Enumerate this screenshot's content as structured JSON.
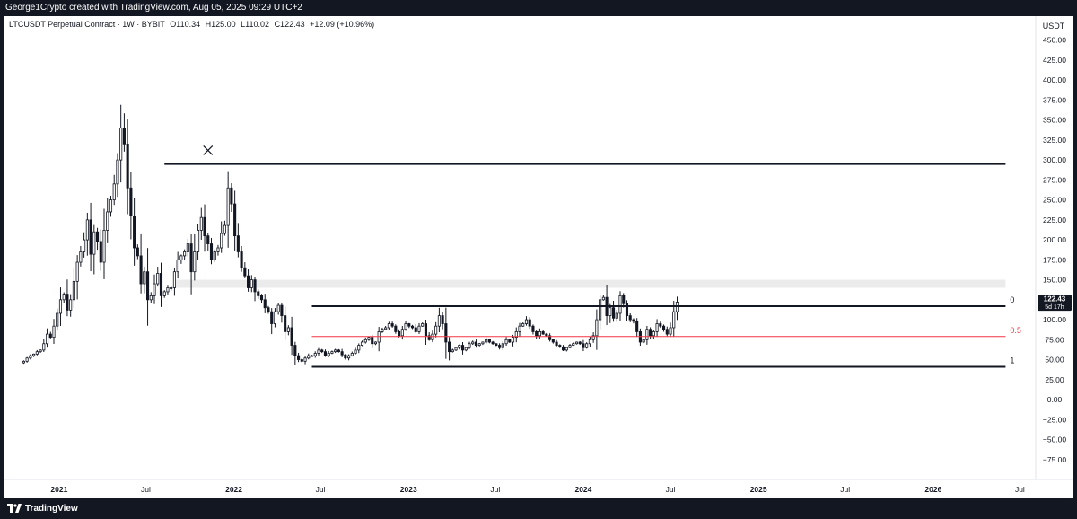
{
  "header": {
    "attribution": "George1Crypto created with TradingView.com, Aug 05, 2025 09:29 UTC+2"
  },
  "legend": {
    "symbol": "LTCUSDT Perpetual Contract · 1W · BYBIT",
    "open_label": "O110.34",
    "high_label": "H125.00",
    "low_label": "L110.02",
    "close_label": "C122.43",
    "change_label": "+12.09 (+10.96%)"
  },
  "footer": {
    "brand": "TradingView"
  },
  "colors": {
    "up": "#089981",
    "down": "#f23645",
    "candle": "#131722",
    "fib_mid": "#f23645",
    "frame_bg": "#131722"
  },
  "chart_data": {
    "type": "candlestick",
    "currency": "USDT",
    "y_ticks": [
      -75,
      -50,
      -25,
      0,
      25,
      50,
      75,
      100,
      125,
      150,
      175,
      200,
      225,
      250,
      275,
      300,
      325,
      350,
      375,
      400,
      425,
      450
    ],
    "y_tick_labels": [
      "−75.00",
      "−50.00",
      "−25.00",
      "0.00",
      "25.00",
      "50.00",
      "75.00",
      "100.00",
      "125.00",
      "150.00",
      "175.00",
      "200.00",
      "225.00",
      "250.00",
      "275.00",
      "300.00",
      "325.00",
      "350.00",
      "375.00",
      "400.00",
      "425.00",
      "450.00"
    ],
    "ylim": [
      -100,
      480
    ],
    "x_range": [
      "2020-09-07",
      "2026-08-03"
    ],
    "x_ticks": [
      {
        "date": "2021-01-01",
        "label": "2021"
      },
      {
        "date": "2021-07-01",
        "label": "Jul"
      },
      {
        "date": "2022-01-01",
        "label": "2022"
      },
      {
        "date": "2022-07-01",
        "label": "Jul"
      },
      {
        "date": "2023-01-01",
        "label": "2023"
      },
      {
        "date": "2023-07-01",
        "label": "Jul"
      },
      {
        "date": "2024-01-01",
        "label": "2024"
      },
      {
        "date": "2024-07-01",
        "label": "Jul"
      },
      {
        "date": "2025-01-01",
        "label": "2025"
      },
      {
        "date": "2025-07-01",
        "label": "Jul"
      },
      {
        "date": "2026-01-01",
        "label": "2026"
      },
      {
        "date": "2026-07-01",
        "label": "Jul"
      }
    ],
    "first_week": "2020-10-19",
    "series_weekly_close": [
      48,
      52,
      55,
      57,
      60,
      62,
      70,
      82,
      78,
      92,
      108,
      125,
      132,
      112,
      125,
      148,
      172,
      185,
      200,
      225,
      182,
      210,
      198,
      172,
      212,
      235,
      250,
      270,
      300,
      340,
      320,
      265,
      230,
      190,
      180,
      145,
      160,
      125,
      130,
      145,
      158,
      130,
      135,
      140,
      140,
      160,
      175,
      180,
      185,
      195,
      160,
      185,
      212,
      228,
      205,
      195,
      175,
      185,
      190,
      208,
      218,
      265,
      245,
      205,
      185,
      165,
      155,
      140,
      150,
      135,
      130,
      125,
      115,
      110,
      95,
      110,
      118,
      105,
      85,
      90,
      68,
      55,
      50,
      48,
      52,
      55,
      55,
      58,
      62,
      60,
      55,
      58,
      60,
      62,
      60,
      56,
      52,
      55,
      58,
      62,
      68,
      72,
      75,
      78,
      70,
      72,
      85,
      88,
      90,
      95,
      92,
      85,
      80,
      88,
      95,
      92,
      90,
      85,
      92,
      95,
      80,
      75,
      82,
      92,
      105,
      95,
      72,
      60,
      62,
      65,
      68,
      62,
      65,
      70,
      72,
      68,
      70,
      72,
      75,
      72,
      70,
      68,
      65,
      70,
      75,
      72,
      78,
      85,
      92,
      95,
      100,
      92,
      85,
      80,
      85,
      82,
      80,
      75,
      72,
      68,
      66,
      62,
      65,
      68,
      70,
      72,
      70,
      65,
      70,
      75,
      80,
      100,
      125,
      128,
      105,
      115,
      102,
      108,
      130,
      120,
      105,
      100,
      98,
      85,
      72,
      75,
      88,
      80,
      85,
      95,
      92,
      88,
      82,
      90,
      110,
      122
    ],
    "markers": [
      {
        "type": "cross",
        "date": "2021-11-08",
        "value": 312
      }
    ],
    "horizontal_levels": [
      {
        "value": 295,
        "from": "2021-08-09",
        "to": "2026-06-01"
      },
      {
        "value": 117,
        "from": "2022-06-13",
        "to": "2026-06-01",
        "fib_label": "0"
      },
      {
        "value": 79,
        "from": "2022-06-13",
        "to": "2026-06-01",
        "fib_label": "0.5"
      },
      {
        "value": 41,
        "from": "2022-06-13",
        "to": "2026-06-01",
        "fib_label": "1"
      }
    ],
    "zone": {
      "from": "2021-09-01",
      "to": "2026-06-01",
      "low": 140,
      "high": 150
    },
    "last_price": {
      "value": 122.43,
      "label": "122.43",
      "countdown": "5d 17h"
    }
  }
}
